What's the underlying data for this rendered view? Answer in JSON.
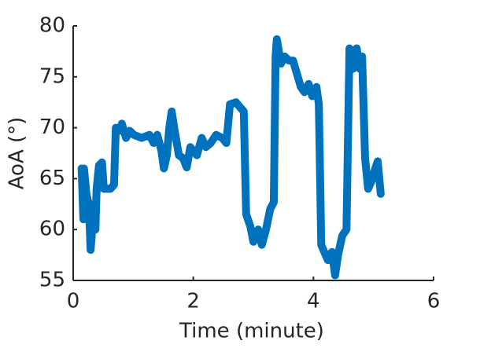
{
  "chart_data": {
    "type": "line",
    "xlabel": "Time (minute)",
    "ylabel": "AoA (°)",
    "x": [
      0.14,
      0.17,
      0.18,
      0.22,
      0.26,
      0.29,
      0.33,
      0.37,
      0.39,
      0.43,
      0.48,
      0.51,
      0.62,
      0.68,
      0.71,
      0.77,
      0.81,
      0.88,
      0.94,
      1.01,
      1.14,
      1.27,
      1.34,
      1.4,
      1.47,
      1.51,
      1.56,
      1.6,
      1.64,
      1.69,
      1.76,
      1.83,
      1.89,
      1.95,
      2.06,
      2.14,
      2.21,
      2.29,
      2.38,
      2.48,
      2.55,
      2.61,
      2.71,
      2.78,
      2.84,
      2.88,
      2.95,
      3.0,
      3.08,
      3.14,
      3.21,
      3.28,
      3.34,
      3.37,
      3.39,
      3.46,
      3.52,
      3.59,
      3.66,
      3.72,
      3.79,
      3.85,
      3.92,
      3.98,
      4.05,
      4.09,
      4.13,
      4.18,
      4.24,
      4.31,
      4.36,
      4.41,
      4.48,
      4.55,
      4.6,
      4.66,
      4.72,
      4.77,
      4.81,
      4.86,
      4.91,
      4.97,
      5.03,
      5.07,
      5.12
    ],
    "series": [
      {
        "name": "AoA",
        "color": "#0072bd",
        "values": [
          66,
          61,
          66,
          63.5,
          62.5,
          58,
          61,
          60,
          64,
          66.3,
          66.6,
          64,
          64,
          64.4,
          70,
          69.7,
          70.4,
          69,
          69.7,
          69.3,
          69,
          69.3,
          68.5,
          69.3,
          67.7,
          66,
          67.3,
          70,
          71.6,
          69.7,
          67.3,
          67,
          66.1,
          68.1,
          67.3,
          69,
          68.1,
          68.5,
          69.3,
          69,
          68.5,
          72.3,
          72.5,
          72,
          71.6,
          61.5,
          60.3,
          58.8,
          60,
          58.5,
          60,
          62,
          62.7,
          77,
          78.7,
          76.3,
          77,
          76.6,
          76.6,
          75.4,
          74,
          73.5,
          74.3,
          73.1,
          74,
          72.3,
          58.5,
          57.8,
          57,
          57.8,
          55.5,
          57.5,
          59.4,
          60,
          77.8,
          75.8,
          77.8,
          75.8,
          77,
          67,
          64,
          64.8,
          66,
          66.7,
          63.5
        ]
      }
    ],
    "xlim": [
      0,
      6
    ],
    "xticks": [
      0,
      2,
      4,
      6
    ],
    "ylim": [
      55,
      80
    ],
    "yticks": [
      55,
      60,
      65,
      70,
      75,
      80
    ]
  }
}
